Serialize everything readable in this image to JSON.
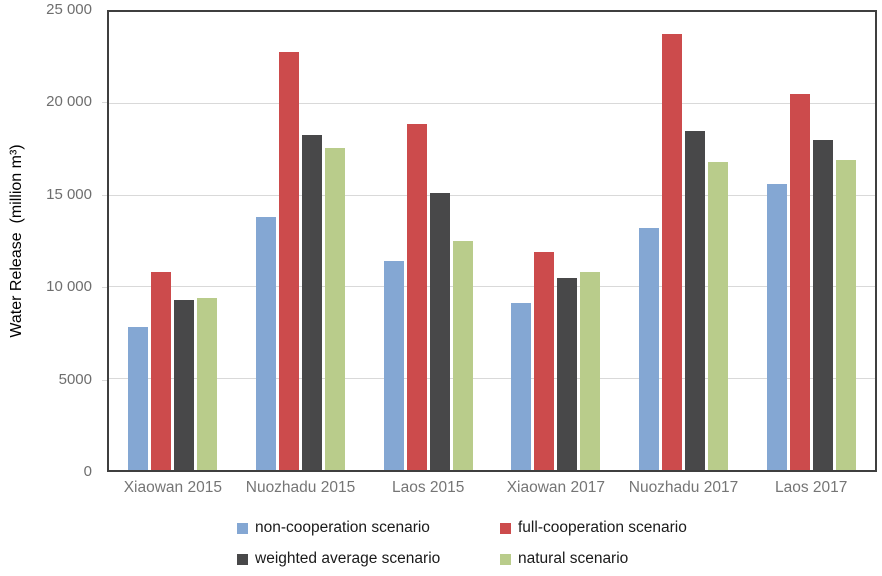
{
  "chart_data": {
    "type": "bar",
    "title": "",
    "xlabel": "",
    "ylabel": "Water Release  (million m³)",
    "ylim": [
      0,
      25000
    ],
    "ytick_interval": 5000,
    "ytick_labels": [
      "0",
      "5000",
      "10 000",
      "15 000",
      "20 000",
      "25 000"
    ],
    "grid": true,
    "legend_position": "bottom",
    "categories": [
      "Xiaowan 2015",
      "Nuozhadu 2015",
      "Laos 2015",
      "Xiaowan 2017",
      "Nuozhadu 2017",
      "Laos 2017"
    ],
    "series": [
      {
        "name": "non-cooperation scenario",
        "color": "#84A7D3",
        "values": [
          7800,
          13800,
          11400,
          9100,
          13200,
          15600
        ]
      },
      {
        "name": "full-cooperation scenario",
        "color": "#CC4B4C",
        "values": [
          10800,
          22800,
          18900,
          11900,
          23800,
          20500
        ]
      },
      {
        "name": "weighted average scenario",
        "color": "#484849",
        "values": [
          9300,
          18300,
          15100,
          10500,
          18500,
          18000
        ]
      },
      {
        "name": "natural scenario",
        "color": "#B9CC8B",
        "values": [
          9400,
          17600,
          12500,
          10800,
          16800,
          16900
        ]
      }
    ],
    "palette": {
      "gridline": "#d9d9d9",
      "axis": "#3f3f3f",
      "tick_text": "#6e6e6e",
      "category_text": "#757575",
      "legend_text": "#1a1a1a",
      "background": "#ffffff"
    }
  }
}
